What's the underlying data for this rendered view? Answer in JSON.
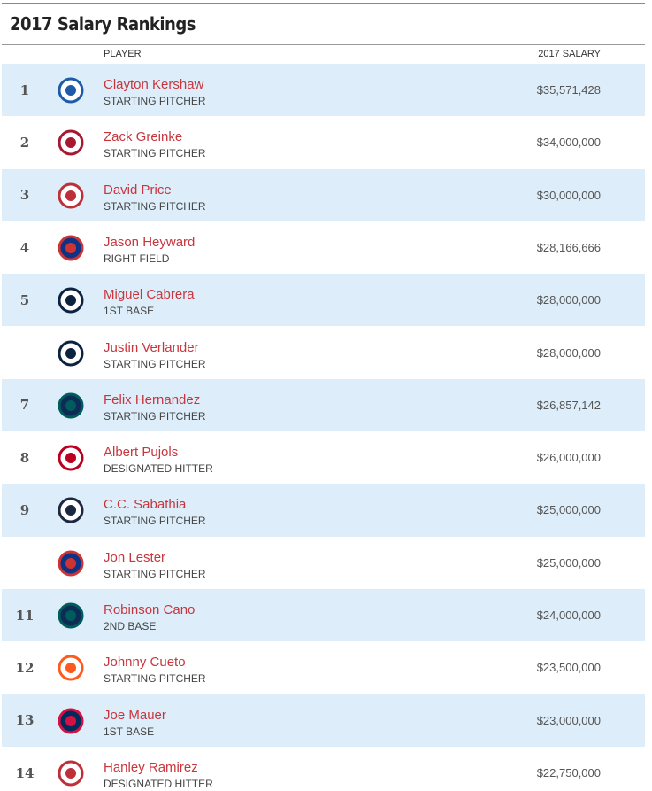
{
  "header": {
    "title": "2017 Salary Rankings"
  },
  "table": {
    "columns": [
      "PLAYER",
      "2017 SALARY"
    ],
    "rows": [
      {
        "rank": "1",
        "name": "Clayton Kershaw",
        "position": "STARTING PITCHER",
        "salary": "$35,571,428"
      },
      {
        "rank": "2",
        "name": "Zack Greinke",
        "position": "STARTING PITCHER",
        "salary": "$34,000,000"
      },
      {
        "rank": "3",
        "name": "David Price",
        "position": "STARTING PITCHER",
        "salary": "$30,000,000"
      },
      {
        "rank": "4",
        "name": "Jason Heyward",
        "position": "RIGHT FIELD",
        "salary": "$28,166,666"
      },
      {
        "rank": "5",
        "name": "Miguel Cabrera",
        "position": "1ST BASE",
        "salary": "$28,000,000"
      },
      {
        "name": "Justin Verlander",
        "position": "STARTING PITCHER",
        "salary": "$28,000,000"
      },
      {
        "rank": "7",
        "name": "Felix Hernandez",
        "position": "STARTING PITCHER",
        "salary": "$26,857,142"
      },
      {
        "rank": "8",
        "name": "Albert Pujols",
        "position": "DESIGNATED HITTER",
        "salary": "$26,000,000"
      },
      {
        "rank": "9",
        "name": "C.C. Sabathia",
        "position": "STARTING PITCHER",
        "salary": "$25,000,000"
      },
      {
        "name": "Jon Lester",
        "position": "STARTING PITCHER",
        "salary": "$25,000,000"
      },
      {
        "rank": "11",
        "name": "Robinson Cano",
        "position": "2ND BASE",
        "salary": "$24,000,000"
      },
      {
        "rank": "12",
        "name": "Johnny Cueto",
        "position": "STARTING PITCHER",
        "salary": "$23,500,000"
      },
      {
        "rank": "13",
        "name": "Joe Mauer",
        "position": "1ST BASE",
        "salary": "$23,000,000"
      },
      {
        "rank": "14",
        "name": "Hanley Ramirez",
        "position": "DESIGNATED HITTER",
        "salary": "$22,750,000"
      }
    ]
  }
}
